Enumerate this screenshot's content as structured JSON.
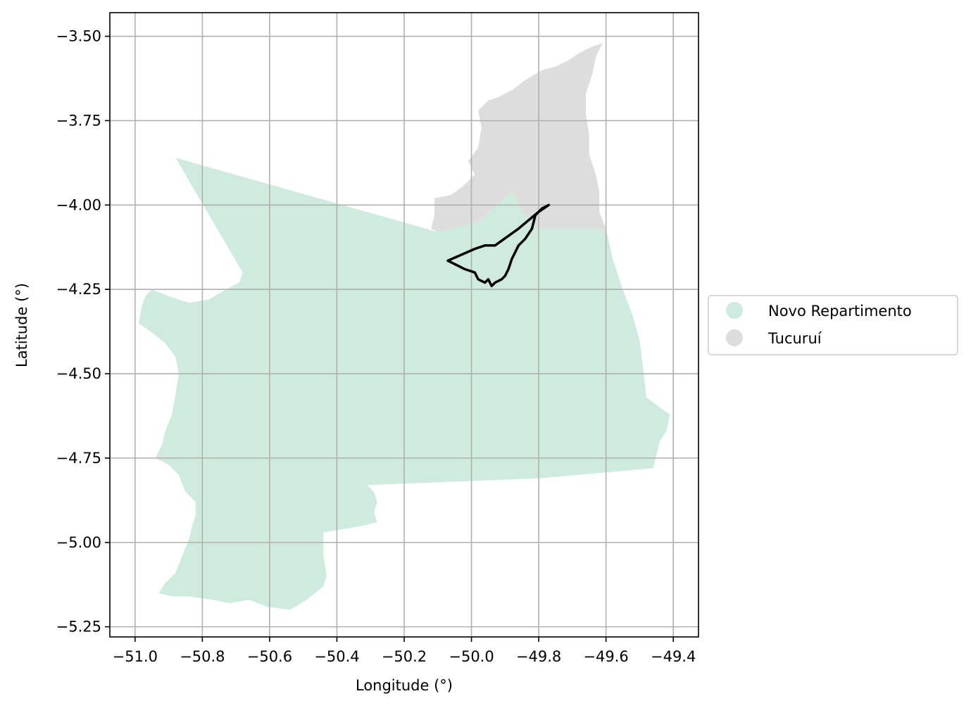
{
  "chart_data": {
    "type": "map",
    "xlabel": "Longitude (°)",
    "ylabel": "Latitude (°)",
    "xlim": [
      -51.075,
      -49.325
    ],
    "ylim": [
      -5.28,
      -3.43
    ],
    "xticks": [
      -51.0,
      -50.8,
      -50.6,
      -50.4,
      -50.2,
      -50.0,
      -49.8,
      -49.6,
      -49.4
    ],
    "xtick_labels": [
      "−51.0",
      "−50.8",
      "−50.6",
      "−50.4",
      "−50.2",
      "−50.0",
      "−49.8",
      "−49.6",
      "−49.4"
    ],
    "yticks": [
      -3.5,
      -3.75,
      -4.0,
      -4.25,
      -4.5,
      -4.75,
      -5.0,
      -5.25
    ],
    "ytick_labels": [
      "−3.50",
      "−3.75",
      "−4.00",
      "−4.25",
      "−4.50",
      "−4.75",
      "−5.00",
      "−5.25"
    ],
    "grid": true,
    "legend_position": "right",
    "series": [
      {
        "name": "Novo Repartimento",
        "color": "#cfebdf",
        "coords": [
          [
            -50.88,
            -3.86
          ],
          [
            -50.1,
            -4.08
          ],
          [
            -49.98,
            -4.05
          ],
          [
            -49.88,
            -3.96
          ],
          [
            -49.85,
            -4.02
          ],
          [
            -49.8,
            -4.07
          ],
          [
            -49.6,
            -4.07
          ],
          [
            -49.58,
            -4.16
          ],
          [
            -49.55,
            -4.25
          ],
          [
            -49.52,
            -4.33
          ],
          [
            -49.5,
            -4.4
          ],
          [
            -49.49,
            -4.48
          ],
          [
            -49.48,
            -4.57
          ],
          [
            -49.44,
            -4.6
          ],
          [
            -49.41,
            -4.62
          ],
          [
            -49.42,
            -4.67
          ],
          [
            -49.44,
            -4.7
          ],
          [
            -49.46,
            -4.78
          ],
          [
            -49.8,
            -4.81
          ],
          [
            -50.31,
            -4.83
          ],
          [
            -50.29,
            -4.85
          ],
          [
            -50.28,
            -4.88
          ],
          [
            -50.29,
            -4.91
          ],
          [
            -50.28,
            -4.94
          ],
          [
            -50.32,
            -4.95
          ],
          [
            -50.38,
            -4.96
          ],
          [
            -50.44,
            -4.97
          ],
          [
            -50.44,
            -5.04
          ],
          [
            -50.43,
            -5.1
          ],
          [
            -50.44,
            -5.13
          ],
          [
            -50.49,
            -5.17
          ],
          [
            -50.54,
            -5.2
          ],
          [
            -50.61,
            -5.19
          ],
          [
            -50.66,
            -5.17
          ],
          [
            -50.72,
            -5.18
          ],
          [
            -50.77,
            -5.17
          ],
          [
            -50.84,
            -5.16
          ],
          [
            -50.89,
            -5.16
          ],
          [
            -50.93,
            -5.15
          ],
          [
            -50.91,
            -5.12
          ],
          [
            -50.88,
            -5.09
          ],
          [
            -50.86,
            -5.04
          ],
          [
            -50.84,
            -4.99
          ],
          [
            -50.83,
            -4.95
          ],
          [
            -50.82,
            -4.92
          ],
          [
            -50.82,
            -4.88
          ],
          [
            -50.85,
            -4.85
          ],
          [
            -50.87,
            -4.8
          ],
          [
            -50.9,
            -4.77
          ],
          [
            -50.94,
            -4.75
          ],
          [
            -50.92,
            -4.71
          ],
          [
            -50.91,
            -4.67
          ],
          [
            -50.89,
            -4.62
          ],
          [
            -50.88,
            -4.56
          ],
          [
            -50.87,
            -4.5
          ],
          [
            -50.88,
            -4.45
          ],
          [
            -50.91,
            -4.41
          ],
          [
            -50.96,
            -4.37
          ],
          [
            -50.99,
            -4.35
          ],
          [
            -50.98,
            -4.3
          ],
          [
            -50.97,
            -4.27
          ],
          [
            -50.95,
            -4.25
          ],
          [
            -50.9,
            -4.27
          ],
          [
            -50.84,
            -4.29
          ],
          [
            -50.78,
            -4.28
          ],
          [
            -50.73,
            -4.25
          ],
          [
            -50.69,
            -4.23
          ],
          [
            -50.68,
            -4.2
          ],
          [
            -50.88,
            -3.86
          ]
        ]
      },
      {
        "name": "Tucuruí",
        "color": "#dddddd",
        "coords": [
          [
            -50.12,
            -4.07
          ],
          [
            -50.11,
            -4.03
          ],
          [
            -50.11,
            -3.98
          ],
          [
            -50.06,
            -3.97
          ],
          [
            -50.02,
            -3.94
          ],
          [
            -49.99,
            -3.91
          ],
          [
            -50.01,
            -3.87
          ],
          [
            -49.98,
            -3.83
          ],
          [
            -49.97,
            -3.77
          ],
          [
            -49.98,
            -3.72
          ],
          [
            -49.95,
            -3.69
          ],
          [
            -49.92,
            -3.68
          ],
          [
            -49.88,
            -3.66
          ],
          [
            -49.84,
            -3.63
          ],
          [
            -49.79,
            -3.6
          ],
          [
            -49.75,
            -3.59
          ],
          [
            -49.71,
            -3.57
          ],
          [
            -49.68,
            -3.55
          ],
          [
            -49.64,
            -3.53
          ],
          [
            -49.61,
            -3.52
          ],
          [
            -49.63,
            -3.56
          ],
          [
            -49.64,
            -3.61
          ],
          [
            -49.66,
            -3.67
          ],
          [
            -49.66,
            -3.73
          ],
          [
            -49.65,
            -3.79
          ],
          [
            -49.65,
            -3.85
          ],
          [
            -49.63,
            -3.91
          ],
          [
            -49.62,
            -3.96
          ],
          [
            -49.62,
            -4.02
          ],
          [
            -49.6,
            -4.07
          ],
          [
            -49.8,
            -4.07
          ],
          [
            -49.85,
            -4.02
          ],
          [
            -49.88,
            -3.96
          ],
          [
            -49.98,
            -4.05
          ],
          [
            -50.1,
            -4.08
          ],
          [
            -50.12,
            -4.07
          ]
        ]
      },
      {
        "name": "",
        "color": "#000000",
        "type": "outline",
        "coords": [
          [
            -49.77,
            -4.0
          ],
          [
            -49.79,
            -4.01
          ],
          [
            -49.81,
            -4.03
          ],
          [
            -49.82,
            -4.07
          ],
          [
            -49.84,
            -4.1
          ],
          [
            -49.86,
            -4.12
          ],
          [
            -49.88,
            -4.16
          ],
          [
            -49.89,
            -4.19
          ],
          [
            -49.9,
            -4.21
          ],
          [
            -49.91,
            -4.22
          ],
          [
            -49.93,
            -4.23
          ],
          [
            -49.94,
            -4.24
          ],
          [
            -49.95,
            -4.22
          ],
          [
            -49.96,
            -4.23
          ],
          [
            -49.98,
            -4.22
          ],
          [
            -49.99,
            -4.2
          ],
          [
            -50.02,
            -4.19
          ],
          [
            -50.04,
            -4.18
          ],
          [
            -50.07,
            -4.165
          ],
          [
            -49.99,
            -4.13
          ],
          [
            -49.96,
            -4.12
          ],
          [
            -49.94,
            -4.12
          ],
          [
            -49.93,
            -4.12
          ],
          [
            -49.86,
            -4.07
          ],
          [
            -49.8,
            -4.02
          ],
          [
            -49.77,
            -4.0
          ]
        ]
      }
    ]
  }
}
